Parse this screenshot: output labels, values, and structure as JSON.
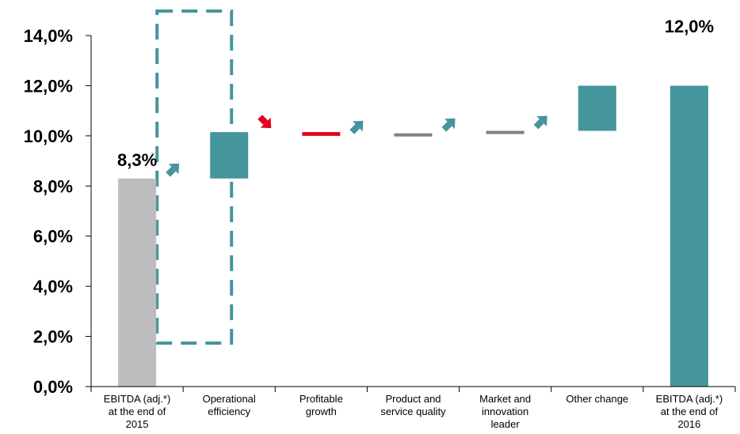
{
  "chart_data": {
    "type": "bar",
    "subtype": "waterfall",
    "categories": [
      "EBITDA (adj.*)\nat the end of\n2015",
      "Operational\nefficiency",
      "Profitable\ngrowth",
      "Product and\nservice quality",
      "Market and\ninnovation\nleader",
      "Other change",
      "EBITDA (adj.*)\nat the end of\n2016"
    ],
    "bars": [
      {
        "kind": "total",
        "start": 0,
        "end": 8.3,
        "color": "#bdbdbf"
      },
      {
        "kind": "delta",
        "start": 8.3,
        "end": 10.15,
        "color": "#45959c"
      },
      {
        "kind": "delta",
        "start": 10.15,
        "end": 10.0,
        "color": "#e2001a"
      },
      {
        "kind": "delta",
        "start": 10.0,
        "end": 10.1,
        "color": "#808080"
      },
      {
        "kind": "delta",
        "start": 10.1,
        "end": 10.2,
        "color": "#808080"
      },
      {
        "kind": "delta",
        "start": 10.2,
        "end": 12.0,
        "color": "#45959c"
      },
      {
        "kind": "total",
        "start": 0,
        "end": 12.0,
        "color": "#45959c"
      }
    ],
    "data_labels": [
      {
        "index": 0,
        "text": "8,3%"
      },
      {
        "index": 6,
        "text": "12,0%"
      }
    ],
    "arrows": [
      {
        "after": 0,
        "direction": "up",
        "color": "#45959c"
      },
      {
        "after": 1,
        "direction": "down",
        "color": "#e2001a"
      },
      {
        "after": 2,
        "direction": "up",
        "color": "#45959c"
      },
      {
        "after": 3,
        "direction": "up",
        "color": "#45959c"
      },
      {
        "after": 4,
        "direction": "up",
        "color": "#45959c"
      }
    ],
    "highlight": {
      "index": 1,
      "style": "dashed",
      "color": "#45959c"
    },
    "ylim": [
      0,
      14
    ],
    "yticks": [
      "0,0%",
      "2,0%",
      "4,0%",
      "6,0%",
      "8,0%",
      "10,0%",
      "12,0%",
      "14,0%"
    ],
    "grid": false,
    "title": "",
    "xlabel": "",
    "ylabel": ""
  }
}
